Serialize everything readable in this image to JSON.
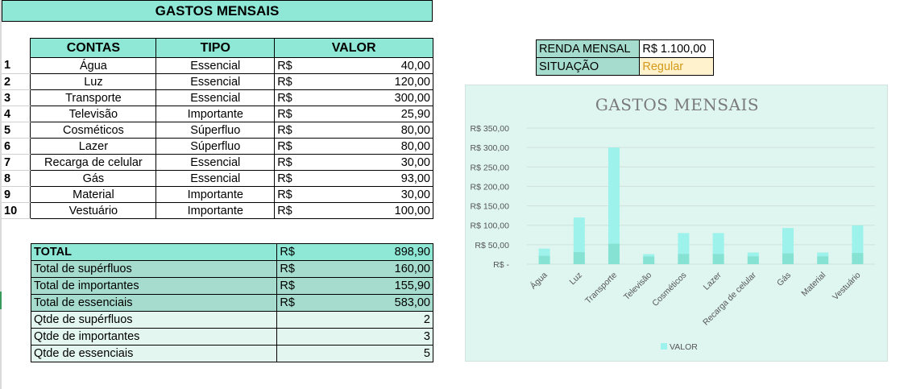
{
  "sheet": {
    "banner_title": "GASTOS MENSAIS",
    "headers": {
      "contas": "CONTAS",
      "tipo": "TIPO",
      "valor": "VALOR"
    },
    "currency": "R$",
    "rows": [
      {
        "idx": "1",
        "conta": "Água",
        "tipo": "Essencial",
        "valor": "40,00"
      },
      {
        "idx": "2",
        "conta": "Luz",
        "tipo": "Essencial",
        "valor": "120,00"
      },
      {
        "idx": "3",
        "conta": "Transporte",
        "tipo": "Essencial",
        "valor": "300,00"
      },
      {
        "idx": "4",
        "conta": "Televisão",
        "tipo": "Importante",
        "valor": "25,90"
      },
      {
        "idx": "5",
        "conta": "Cosméticos",
        "tipo": "Súperfluo",
        "valor": "80,00"
      },
      {
        "idx": "6",
        "conta": "Lazer",
        "tipo": "Súperfluo",
        "valor": "80,00"
      },
      {
        "idx": "7",
        "conta": "Recarga de celular",
        "tipo": "Essencial",
        "valor": "30,00"
      },
      {
        "idx": "8",
        "conta": "Gás",
        "tipo": "Essencial",
        "valor": "93,00"
      },
      {
        "idx": "9",
        "conta": "Material",
        "tipo": "Importante",
        "valor": "30,00"
      },
      {
        "idx": "10",
        "conta": "Vestuário",
        "tipo": "Importante",
        "valor": "100,00"
      }
    ],
    "summary": [
      {
        "label": "TOTAL",
        "cur": "R$",
        "value": "898,90",
        "style": "r-total"
      },
      {
        "label": "Total de supérfluos",
        "cur": "R$",
        "value": "160,00",
        "style": "r-dark"
      },
      {
        "label": "Total de importantes",
        "cur": "R$",
        "value": "155,90",
        "style": "r-dark"
      },
      {
        "label": "Total de essenciais",
        "cur": "R$",
        "value": "583,00",
        "style": "r-dark"
      },
      {
        "label": "Qtde de supérfluos",
        "cur": "",
        "value": "2",
        "style": "r-light"
      },
      {
        "label": "Qtde de importantes",
        "cur": "",
        "value": "3",
        "style": "r-light"
      },
      {
        "label": "Qtde de essenciais",
        "cur": "",
        "value": "5",
        "style": "r-light"
      }
    ],
    "info": {
      "renda_label": "RENDA MENSAL",
      "renda_value": "R$ 1.100,00",
      "situacao_label": "SITUAÇÃO",
      "situacao_value": "Regular"
    }
  },
  "colors": {
    "header_fill": "#8fe8d6",
    "summary_dark": "#a5dccd",
    "summary_light": "#e3f7f0",
    "status_fill": "#fff2cc",
    "status_text": "#d49a1c",
    "bar_light": "#9df2ec",
    "bar_dark": "#7fdcc9",
    "chart_bg": "#dff6f0"
  },
  "chart_data": {
    "type": "bar",
    "title": "GASTOS MENSAIS",
    "categories": [
      "Água",
      "Luz",
      "Transporte",
      "Televisão",
      "Cosméticos",
      "Lazer",
      "Recarga de celular",
      "Gás",
      "Material",
      "Vestuário"
    ],
    "series": [
      {
        "name": "VALOR",
        "values": [
          40,
          120,
          300,
          25.9,
          80,
          80,
          30,
          93,
          30,
          100
        ]
      }
    ],
    "y_ticks": [
      "R$ -",
      "R$ 50,00",
      "R$ 100,00",
      "R$ 150,00",
      "R$ 200,00",
      "R$ 250,00",
      "R$ 300,00",
      "R$ 350,00"
    ],
    "ylim": [
      0,
      350
    ],
    "legend": "bottom",
    "grid": true
  }
}
